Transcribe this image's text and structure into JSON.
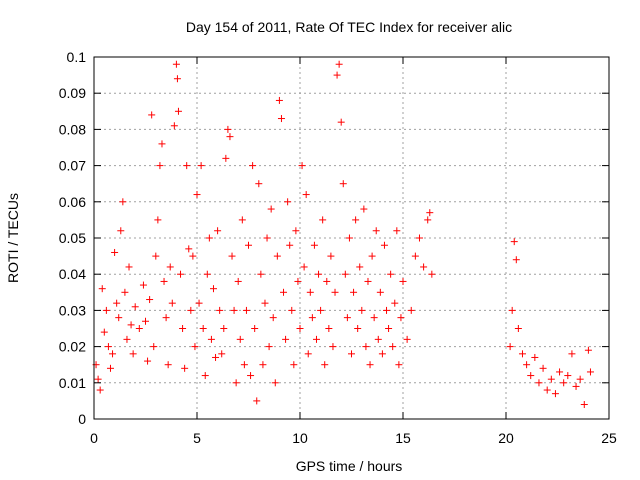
{
  "chart_data": {
    "type": "scatter",
    "title": "Day 154 of 2011, Rate Of TEC Index for receiver alic",
    "xlabel": "GPS time / hours",
    "ylabel": "ROTI / TECUs",
    "xlim": [
      0,
      25
    ],
    "ylim": [
      0,
      0.1
    ],
    "x_ticks": [
      "0",
      "5",
      "10",
      "15",
      "20",
      "25"
    ],
    "y_ticks": [
      "0",
      "0.01",
      "0.02",
      "0.03",
      "0.04",
      "0.05",
      "0.06",
      "0.07",
      "0.08",
      "0.09",
      "0.1"
    ],
    "grid": true,
    "marker": "+",
    "series": [
      {
        "color": "#ff0000",
        "points": [
          [
            0.1,
            0.015
          ],
          [
            0.2,
            0.011
          ],
          [
            0.3,
            0.008
          ],
          [
            0.4,
            0.036
          ],
          [
            0.5,
            0.024
          ],
          [
            0.6,
            0.03
          ],
          [
            0.7,
            0.02
          ],
          [
            0.8,
            0.014
          ],
          [
            0.9,
            0.018
          ],
          [
            1.0,
            0.046
          ],
          [
            1.1,
            0.032
          ],
          [
            1.2,
            0.028
          ],
          [
            1.3,
            0.052
          ],
          [
            1.4,
            0.06
          ],
          [
            1.5,
            0.035
          ],
          [
            1.6,
            0.022
          ],
          [
            1.7,
            0.042
          ],
          [
            1.8,
            0.026
          ],
          [
            1.9,
            0.018
          ],
          [
            2.0,
            0.031
          ],
          [
            2.2,
            0.025
          ],
          [
            2.4,
            0.037
          ],
          [
            2.5,
            0.027
          ],
          [
            2.6,
            0.016
          ],
          [
            2.7,
            0.033
          ],
          [
            2.8,
            0.084
          ],
          [
            2.9,
            0.02
          ],
          [
            3.0,
            0.045
          ],
          [
            3.1,
            0.055
          ],
          [
            3.2,
            0.07
          ],
          [
            3.3,
            0.076
          ],
          [
            3.4,
            0.038
          ],
          [
            3.5,
            0.028
          ],
          [
            3.6,
            0.015
          ],
          [
            3.7,
            0.042
          ],
          [
            3.8,
            0.032
          ],
          [
            3.9,
            0.081
          ],
          [
            4.0,
            0.098
          ],
          [
            4.05,
            0.094
          ],
          [
            4.1,
            0.085
          ],
          [
            4.2,
            0.04
          ],
          [
            4.3,
            0.025
          ],
          [
            4.4,
            0.014
          ],
          [
            4.5,
            0.07
          ],
          [
            4.6,
            0.047
          ],
          [
            4.7,
            0.03
          ],
          [
            4.8,
            0.045
          ],
          [
            4.9,
            0.02
          ],
          [
            5.0,
            0.062
          ],
          [
            5.1,
            0.032
          ],
          [
            5.2,
            0.07
          ],
          [
            5.3,
            0.025
          ],
          [
            5.4,
            0.012
          ],
          [
            5.5,
            0.04
          ],
          [
            5.6,
            0.05
          ],
          [
            5.7,
            0.022
          ],
          [
            5.8,
            0.036
          ],
          [
            5.9,
            0.017
          ],
          [
            6.0,
            0.052
          ],
          [
            6.1,
            0.03
          ],
          [
            6.2,
            0.018
          ],
          [
            6.3,
            0.025
          ],
          [
            6.4,
            0.072
          ],
          [
            6.5,
            0.08
          ],
          [
            6.6,
            0.078
          ],
          [
            6.7,
            0.045
          ],
          [
            6.8,
            0.03
          ],
          [
            6.9,
            0.01
          ],
          [
            7.0,
            0.038
          ],
          [
            7.1,
            0.022
          ],
          [
            7.2,
            0.055
          ],
          [
            7.3,
            0.015
          ],
          [
            7.4,
            0.03
          ],
          [
            7.5,
            0.048
          ],
          [
            7.6,
            0.012
          ],
          [
            7.7,
            0.07
          ],
          [
            7.8,
            0.025
          ],
          [
            7.9,
            0.005
          ],
          [
            8.0,
            0.065
          ],
          [
            8.1,
            0.04
          ],
          [
            8.2,
            0.015
          ],
          [
            8.3,
            0.032
          ],
          [
            8.4,
            0.05
          ],
          [
            8.5,
            0.02
          ],
          [
            8.6,
            0.058
          ],
          [
            8.7,
            0.028
          ],
          [
            8.8,
            0.01
          ],
          [
            8.9,
            0.045
          ],
          [
            9.0,
            0.088
          ],
          [
            9.1,
            0.083
          ],
          [
            9.2,
            0.035
          ],
          [
            9.3,
            0.022
          ],
          [
            9.4,
            0.06
          ],
          [
            9.5,
            0.048
          ],
          [
            9.6,
            0.03
          ],
          [
            9.7,
            0.015
          ],
          [
            9.8,
            0.052
          ],
          [
            9.9,
            0.038
          ],
          [
            10.0,
            0.025
          ],
          [
            10.1,
            0.07
          ],
          [
            10.2,
            0.042
          ],
          [
            10.3,
            0.062
          ],
          [
            10.4,
            0.018
          ],
          [
            10.5,
            0.035
          ],
          [
            10.6,
            0.028
          ],
          [
            10.7,
            0.048
          ],
          [
            10.8,
            0.022
          ],
          [
            10.9,
            0.04
          ],
          [
            11.0,
            0.03
          ],
          [
            11.1,
            0.055
          ],
          [
            11.2,
            0.015
          ],
          [
            11.3,
            0.038
          ],
          [
            11.4,
            0.025
          ],
          [
            11.5,
            0.045
          ],
          [
            11.6,
            0.02
          ],
          [
            11.7,
            0.035
          ],
          [
            11.8,
            0.095
          ],
          [
            11.9,
            0.098
          ],
          [
            12.0,
            0.082
          ],
          [
            12.1,
            0.065
          ],
          [
            12.2,
            0.04
          ],
          [
            12.3,
            0.028
          ],
          [
            12.4,
            0.05
          ],
          [
            12.5,
            0.018
          ],
          [
            12.6,
            0.035
          ],
          [
            12.7,
            0.055
          ],
          [
            12.8,
            0.025
          ],
          [
            12.9,
            0.042
          ],
          [
            13.0,
            0.03
          ],
          [
            13.1,
            0.058
          ],
          [
            13.2,
            0.02
          ],
          [
            13.3,
            0.038
          ],
          [
            13.4,
            0.015
          ],
          [
            13.5,
            0.045
          ],
          [
            13.6,
            0.028
          ],
          [
            13.7,
            0.052
          ],
          [
            13.8,
            0.022
          ],
          [
            13.9,
            0.035
          ],
          [
            14.0,
            0.018
          ],
          [
            14.1,
            0.048
          ],
          [
            14.2,
            0.03
          ],
          [
            14.3,
            0.025
          ],
          [
            14.4,
            0.04
          ],
          [
            14.5,
            0.02
          ],
          [
            14.6,
            0.032
          ],
          [
            14.7,
            0.052
          ],
          [
            14.8,
            0.015
          ],
          [
            14.9,
            0.028
          ],
          [
            15.0,
            0.038
          ],
          [
            15.2,
            0.022
          ],
          [
            15.4,
            0.03
          ],
          [
            15.6,
            0.045
          ],
          [
            15.8,
            0.05
          ],
          [
            16.0,
            0.042
          ],
          [
            16.2,
            0.055
          ],
          [
            16.3,
            0.057
          ],
          [
            16.4,
            0.04
          ],
          [
            20.2,
            0.02
          ],
          [
            20.3,
            0.03
          ],
          [
            20.4,
            0.049
          ],
          [
            20.5,
            0.044
          ],
          [
            20.6,
            0.025
          ],
          [
            20.8,
            0.018
          ],
          [
            21.0,
            0.015
          ],
          [
            21.2,
            0.012
          ],
          [
            21.4,
            0.017
          ],
          [
            21.6,
            0.01
          ],
          [
            21.8,
            0.014
          ],
          [
            22.0,
            0.008
          ],
          [
            22.2,
            0.011
          ],
          [
            22.4,
            0.007
          ],
          [
            22.6,
            0.013
          ],
          [
            22.8,
            0.01
          ],
          [
            23.0,
            0.012
          ],
          [
            23.2,
            0.018
          ],
          [
            23.4,
            0.009
          ],
          [
            23.6,
            0.011
          ],
          [
            23.8,
            0.004
          ],
          [
            24.0,
            0.019
          ],
          [
            24.1,
            0.013
          ]
        ]
      }
    ]
  }
}
